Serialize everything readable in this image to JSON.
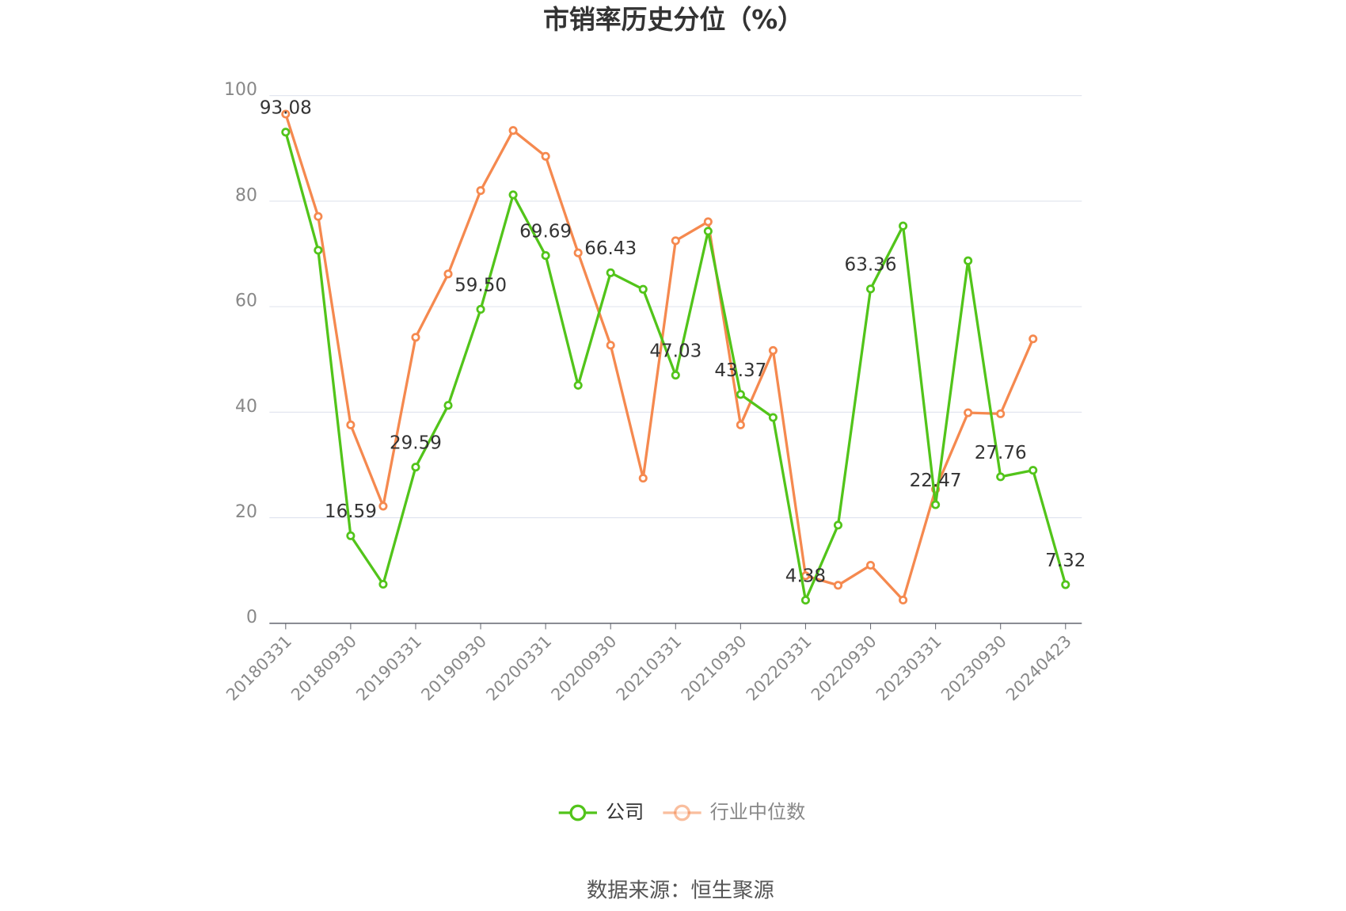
{
  "chart_data": {
    "type": "line",
    "title": "市销率历史分位（%）",
    "source": "数据来源：恒生聚源",
    "categories": [
      "20180331",
      null,
      "20180930",
      null,
      "20190331",
      null,
      "20190930",
      null,
      "20200331",
      null,
      "20200930",
      null,
      "20210331",
      null,
      "20210930",
      null,
      "20220331",
      null,
      "20220930",
      null,
      "20230331",
      null,
      "20230930",
      null,
      "20240423"
    ],
    "series": [
      {
        "name": "公司",
        "color": "#52c41a",
        "values": [
          93.08,
          70.7,
          16.59,
          7.4,
          29.59,
          41.3,
          59.5,
          81.2,
          69.69,
          45.1,
          66.43,
          63.3,
          47.03,
          74.3,
          43.37,
          39.0,
          4.38,
          18.6,
          63.36,
          75.3,
          22.47,
          68.7,
          27.76,
          29.0,
          7.32
        ],
        "value_labels": [
          "93.08",
          null,
          "16.59",
          null,
          "29.59",
          null,
          "59.50",
          null,
          "69.69",
          null,
          "66.43",
          null,
          "47.03",
          null,
          "43.37",
          null,
          "4.38",
          null,
          "63.36",
          null,
          "22.47",
          null,
          "27.76",
          null,
          "7.32"
        ]
      },
      {
        "name": "行业中位数",
        "color": "#f5894f",
        "values": [
          96.5,
          77.1,
          37.6,
          22.2,
          54.2,
          66.2,
          82.0,
          93.4,
          88.5,
          70.2,
          52.7,
          27.5,
          72.5,
          76.1,
          37.6,
          51.7,
          9.0,
          7.2,
          11.0,
          4.4,
          25.4,
          39.9,
          39.7,
          53.9,
          null
        ]
      }
    ],
    "ylim": [
      0,
      100
    ],
    "yticks": [
      0,
      20,
      40,
      60,
      80,
      100
    ],
    "grid": true,
    "legend": "bottom"
  }
}
